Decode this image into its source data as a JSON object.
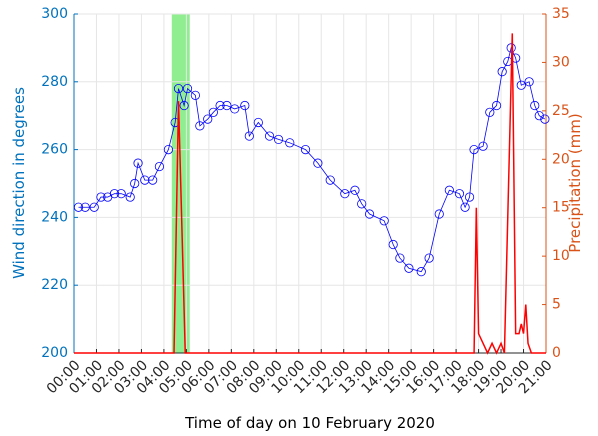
{
  "chart_data": {
    "type": "line",
    "xlabel": "Time of day on 10 February 2020",
    "ylabel": "Wind direction in degrees",
    "y2label": "Precipitation (mm)",
    "ylabel_color": "#0072bd",
    "y2label_color": "#d95319",
    "grid": true,
    "xlim": [
      0,
      21
    ],
    "xticks": [
      {
        "value": 0,
        "label": "00:00"
      },
      {
        "value": 1,
        "label": "01:00"
      },
      {
        "value": 2,
        "label": "02:00"
      },
      {
        "value": 3,
        "label": "03:00"
      },
      {
        "value": 4,
        "label": "04:00"
      },
      {
        "value": 5,
        "label": "05:00"
      },
      {
        "value": 6,
        "label": "06:00"
      },
      {
        "value": 7,
        "label": "07:00"
      },
      {
        "value": 8,
        "label": "08:00"
      },
      {
        "value": 9,
        "label": "09:00"
      },
      {
        "value": 10,
        "label": "10:00"
      },
      {
        "value": 11,
        "label": "11:00"
      },
      {
        "value": 12,
        "label": "12:00"
      },
      {
        "value": 13,
        "label": "13:00"
      },
      {
        "value": 14,
        "label": "14:00"
      },
      {
        "value": 15,
        "label": "15:00"
      },
      {
        "value": 16,
        "label": "16:00"
      },
      {
        "value": 17,
        "label": "17:00"
      },
      {
        "value": 18,
        "label": "18:00"
      },
      {
        "value": 19,
        "label": "19:00"
      },
      {
        "value": 20,
        "label": "20:00"
      },
      {
        "value": 21,
        "label": "21:00"
      }
    ],
    "ylim": [
      200,
      300
    ],
    "yticks": [
      200,
      220,
      240,
      260,
      280,
      300
    ],
    "y2lim": [
      0,
      35
    ],
    "y2ticks": [
      0,
      5,
      10,
      15,
      20,
      25,
      30,
      35
    ],
    "highlight": {
      "x": [
        4.35,
        5.15
      ],
      "color": "#90ee90"
    },
    "series": [
      {
        "name": "Wind direction",
        "color": "#0000ff",
        "marker": "circle",
        "axis": "y",
        "x": [
          0.2,
          0.5,
          0.9,
          1.2,
          1.5,
          1.8,
          2.1,
          2.5,
          2.7,
          2.85,
          3.15,
          3.5,
          3.8,
          4.2,
          4.5,
          4.65,
          4.9,
          5.05,
          5.4,
          5.6,
          5.95,
          6.2,
          6.5,
          6.8,
          7.15,
          7.6,
          7.8,
          8.2,
          8.7,
          9.1,
          9.6,
          10.3,
          10.85,
          11.4,
          12.05,
          12.5,
          12.8,
          13.15,
          13.8,
          14.2,
          14.5,
          14.9,
          15.45,
          15.8,
          16.25,
          16.7,
          17.15,
          17.4,
          17.6,
          17.8,
          18.2,
          18.5,
          18.8,
          19.05,
          19.3,
          19.45,
          19.65,
          19.9,
          20.25,
          20.5,
          20.7,
          20.95
        ],
        "values": [
          243,
          243,
          243,
          246,
          246,
          247,
          247,
          246,
          250,
          256,
          251,
          251,
          255,
          260,
          268,
          278,
          273,
          278,
          276,
          267,
          269,
          271,
          273,
          273,
          272,
          273,
          264,
          268,
          264,
          263,
          262,
          260,
          256,
          251,
          247,
          248,
          244,
          241,
          239,
          232,
          228,
          225,
          224,
          228,
          241,
          248,
          247,
          243,
          246,
          260,
          261,
          271,
          273,
          283,
          286,
          290,
          287,
          279,
          280,
          273,
          270,
          269
        ]
      },
      {
        "name": "Precipitation",
        "color": "#ff0000",
        "axis": "y2",
        "x": [
          0,
          4.45,
          4.65,
          4.95,
          17.8,
          17.9,
          18.0,
          18.2,
          18.4,
          18.6,
          18.8,
          19.0,
          19.15,
          19.5,
          19.65,
          19.8,
          19.9,
          20.0,
          20.1,
          20.2,
          20.35,
          21
        ],
        "values": [
          0,
          0,
          26,
          0,
          0,
          15,
          2,
          1,
          0,
          1,
          0,
          1,
          0,
          33,
          2,
          2,
          3,
          2,
          5,
          1,
          0,
          0
        ]
      }
    ]
  }
}
